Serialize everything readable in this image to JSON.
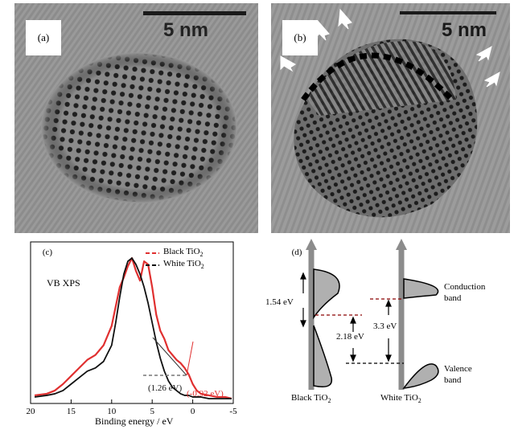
{
  "panels": {
    "a": {
      "label": "(a)",
      "scale": "5 nm"
    },
    "b": {
      "label": "(b)",
      "scale": "5 nm"
    },
    "c": {
      "label": "(c)",
      "title": "VB XPS",
      "legend": [
        {
          "name": "Black TiO",
          "sub": "2",
          "color": "#e03030",
          "style": "dashed"
        },
        {
          "name": "White TiO",
          "sub": "2",
          "color": "#111111",
          "style": "dashed"
        }
      ],
      "xlabel": "Binding energy / eV",
      "annotations": {
        "white": "(1.26 eV)",
        "black": "(-0.92 eV)"
      }
    },
    "d": {
      "label": "(d)",
      "gap_black": "1.54 eV",
      "gap_diff": "2.18 eV",
      "gap_white": "3.3 eV",
      "cb_label_1": "Conduction",
      "cb_label_2": "band",
      "vb_label_1": "Valence",
      "vb_label_2": "band",
      "black_name": "Black TiO",
      "white_name": "White TiO",
      "sub": "2"
    }
  },
  "chart_data": {
    "type": "line",
    "title": "VB XPS",
    "xlabel": "Binding energy / eV",
    "ylabel": "",
    "xlim": [
      20,
      -5
    ],
    "x_ticks": [
      "20",
      "15",
      "10",
      "5",
      "0",
      "-5"
    ],
    "series": [
      {
        "name": "Black TiO2",
        "color": "#e03030",
        "x": [
          19.5,
          18,
          17,
          16,
          15,
          14,
          13,
          12,
          11,
          10,
          9.5,
          9,
          8.5,
          8,
          7.5,
          7,
          6.5,
          6,
          5.5,
          5,
          4.5,
          4,
          3.5,
          3,
          2.5,
          2,
          1.5,
          1,
          0.5,
          0,
          -0.5,
          -1,
          -2,
          -3,
          -4,
          -4.8
        ],
        "y": [
          0.05,
          0.06,
          0.08,
          0.12,
          0.17,
          0.22,
          0.27,
          0.3,
          0.36,
          0.48,
          0.6,
          0.72,
          0.78,
          0.85,
          0.9,
          0.82,
          0.76,
          0.88,
          0.86,
          0.72,
          0.55,
          0.45,
          0.4,
          0.33,
          0.3,
          0.27,
          0.25,
          0.22,
          0.18,
          0.12,
          0.08,
          0.06,
          0.05,
          0.04,
          0.04,
          0.03
        ]
      },
      {
        "name": "White TiO2",
        "color": "#111111",
        "x": [
          19.5,
          18,
          17,
          16,
          15,
          14,
          13,
          12,
          11,
          10,
          9.5,
          9,
          8.5,
          8,
          7.5,
          7,
          6.5,
          6,
          5.5,
          5,
          4.5,
          4,
          3.5,
          3,
          2.5,
          2,
          1.5,
          1,
          0.5,
          0,
          -1,
          -2,
          -3,
          -4,
          -4.8
        ],
        "y": [
          0.04,
          0.05,
          0.06,
          0.08,
          0.12,
          0.16,
          0.2,
          0.22,
          0.26,
          0.36,
          0.5,
          0.66,
          0.8,
          0.88,
          0.9,
          0.86,
          0.8,
          0.72,
          0.62,
          0.5,
          0.38,
          0.28,
          0.2,
          0.14,
          0.1,
          0.08,
          0.06,
          0.05,
          0.05,
          0.04,
          0.04,
          0.03,
          0.03,
          0.03,
          0.03
        ]
      }
    ]
  }
}
